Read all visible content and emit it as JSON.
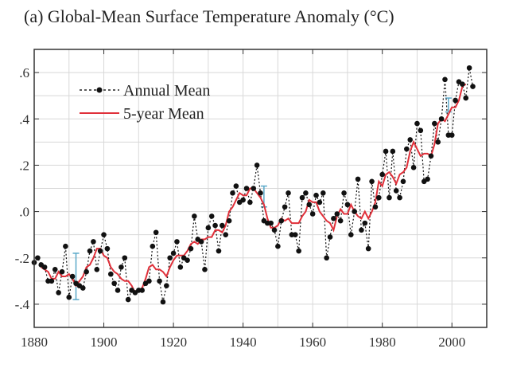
{
  "chart_data": {
    "type": "line",
    "title": "(a)  Global-Mean Surface Temperature Anomaly (°C)",
    "xlabel": "",
    "ylabel": "",
    "xlim": [
      1880,
      2010
    ],
    "ylim": [
      -0.5,
      0.7
    ],
    "grid": true,
    "legend_position": "top-left",
    "x_ticks": [
      1880,
      1900,
      1920,
      1940,
      1960,
      1980,
      2000
    ],
    "x_tick_labels": [
      "1880",
      "1900",
      "1920",
      "1940",
      "1960",
      "1980",
      "2000"
    ],
    "y_ticks": [
      -0.4,
      -0.2,
      0.0,
      0.2,
      0.4,
      0.6
    ],
    "y_tick_labels": [
      "-.4",
      "-.2",
      ".0",
      ".2",
      ".4",
      ".6"
    ],
    "colors": {
      "annual": "#111111",
      "five_year": "#e0303a",
      "error_bar": "#5aa8c8",
      "grid": "#d8d8d8"
    },
    "series": [
      {
        "name": "Annual Mean",
        "style": "dotted-with-markers",
        "x_start": 1880,
        "values": [
          -0.22,
          -0.2,
          -0.23,
          -0.24,
          -0.3,
          -0.3,
          -0.25,
          -0.35,
          -0.26,
          -0.15,
          -0.37,
          -0.28,
          -0.31,
          -0.32,
          -0.33,
          -0.26,
          -0.17,
          -0.13,
          -0.25,
          -0.17,
          -0.1,
          -0.16,
          -0.27,
          -0.31,
          -0.34,
          -0.24,
          -0.2,
          -0.38,
          -0.34,
          -0.35,
          -0.34,
          -0.34,
          -0.31,
          -0.3,
          -0.15,
          -0.09,
          -0.3,
          -0.39,
          -0.32,
          -0.2,
          -0.18,
          -0.13,
          -0.24,
          -0.2,
          -0.21,
          -0.16,
          -0.02,
          -0.12,
          -0.13,
          -0.25,
          -0.07,
          -0.02,
          -0.06,
          -0.17,
          -0.06,
          -0.1,
          -0.04,
          0.08,
          0.11,
          0.04,
          0.05,
          0.1,
          0.04,
          0.1,
          0.2,
          0.08,
          -0.04,
          -0.05,
          -0.05,
          -0.08,
          -0.15,
          -0.04,
          0.02,
          0.08,
          -0.1,
          -0.1,
          -0.17,
          0.06,
          0.08,
          0.03,
          -0.01,
          0.07,
          0.04,
          0.08,
          -0.2,
          -0.11,
          -0.03,
          -0.01,
          -0.04,
          0.08,
          0.03,
          -0.1,
          0.0,
          0.14,
          -0.08,
          -0.05,
          -0.16,
          0.13,
          0.02,
          0.06,
          0.16,
          0.26,
          0.06,
          0.26,
          0.09,
          0.06,
          0.13,
          0.27,
          0.31,
          0.19,
          0.38,
          0.35,
          0.13,
          0.14,
          0.24,
          0.38,
          0.3,
          0.4,
          0.57,
          0.33,
          0.33,
          0.48,
          0.56,
          0.55,
          0.49,
          0.62,
          0.54
        ]
      },
      {
        "name": "5-year Mean",
        "style": "solid",
        "x_start": 1882,
        "values": [
          -0.24,
          -0.25,
          -0.26,
          -0.29,
          -0.29,
          -0.26,
          -0.28,
          -0.28,
          -0.27,
          -0.29,
          -0.32,
          -0.3,
          -0.28,
          -0.24,
          -0.23,
          -0.2,
          -0.16,
          -0.16,
          -0.19,
          -0.2,
          -0.24,
          -0.26,
          -0.27,
          -0.29,
          -0.3,
          -0.3,
          -0.32,
          -0.35,
          -0.34,
          -0.33,
          -0.29,
          -0.24,
          -0.23,
          -0.25,
          -0.25,
          -0.26,
          -0.28,
          -0.24,
          -0.21,
          -0.19,
          -0.19,
          -0.19,
          -0.17,
          -0.14,
          -0.13,
          -0.14,
          -0.12,
          -0.12,
          -0.11,
          -0.11,
          -0.08,
          -0.08,
          -0.09,
          -0.06,
          0.0,
          0.02,
          0.05,
          0.08,
          0.07,
          0.07,
          0.1,
          0.1,
          0.08,
          0.06,
          0.03,
          -0.03,
          -0.07,
          -0.07,
          -0.06,
          -0.03,
          -0.04,
          -0.03,
          -0.05,
          -0.05,
          -0.05,
          -0.02,
          0.0,
          0.05,
          0.04,
          0.04,
          0.0,
          -0.02,
          -0.04,
          -0.05,
          -0.08,
          -0.02,
          0.01,
          -0.01,
          -0.01,
          0.03,
          0.0,
          -0.02,
          -0.03,
          0.0,
          -0.03,
          0.0,
          0.04,
          0.13,
          0.11,
          0.16,
          0.17,
          0.15,
          0.12,
          0.16,
          0.17,
          0.19,
          0.26,
          0.3,
          0.27,
          0.24,
          0.25,
          0.25,
          0.24,
          0.29,
          0.38,
          0.4,
          0.39,
          0.42,
          0.45,
          0.45,
          0.48,
          0.54,
          0.55
        ]
      }
    ],
    "error_bars": [
      {
        "x": 1892,
        "low": -0.38,
        "high": -0.18
      },
      {
        "x": 1946,
        "low": 0.02,
        "high": 0.11
      },
      {
        "x": 1999,
        "low": 0.43,
        "high": 0.49
      }
    ],
    "legend": [
      {
        "label": "Annual Mean"
      },
      {
        "label": "5-year Mean"
      }
    ]
  }
}
